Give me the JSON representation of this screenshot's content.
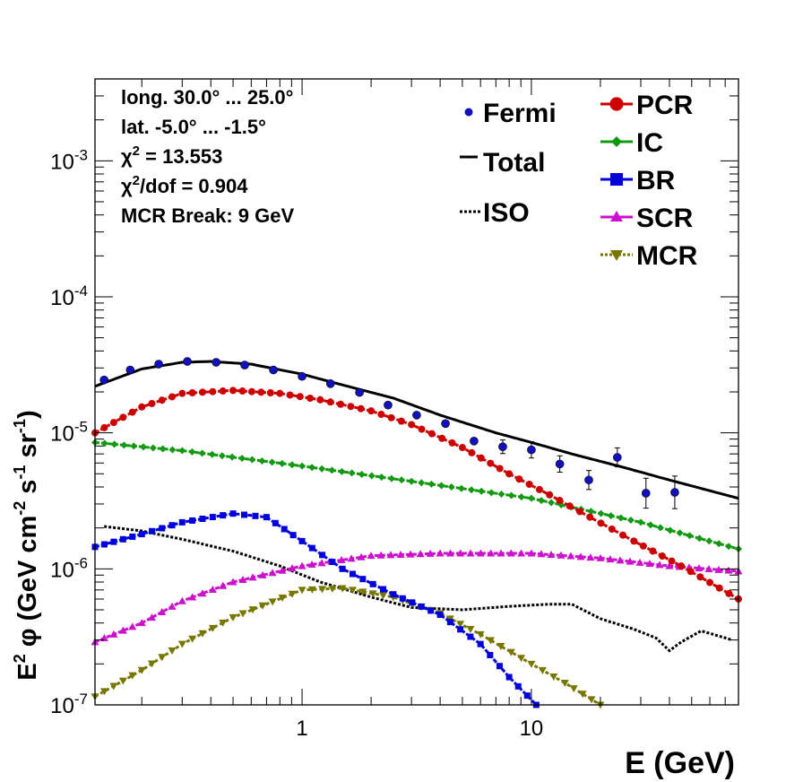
{
  "chart_data": {
    "type": "scatter",
    "xlabel": "E (GeV)",
    "ylabel_parts": [
      "E",
      "2",
      "  φ (GeV cm",
      "-2",
      " s",
      "-1",
      " sr",
      "-1",
      ")"
    ],
    "xscale": "log",
    "yscale": "log",
    "xlim": [
      0.125,
      80
    ],
    "ylim": [
      1e-07,
      0.004
    ],
    "x_ticks": [
      {
        "v": 1,
        "label": "1"
      },
      {
        "v": 10,
        "label": "10"
      }
    ],
    "y_ticks": [
      {
        "v": 1e-07,
        "base": "10",
        "exp": "-7"
      },
      {
        "v": 1e-06,
        "base": "10",
        "exp": "-6"
      },
      {
        "v": 1e-05,
        "base": "10",
        "exp": "-5"
      },
      {
        "v": 0.0001,
        "base": "10",
        "exp": "-4"
      },
      {
        "v": 0.001,
        "base": "10",
        "exp": "-3"
      }
    ],
    "annotations": [
      {
        "text": "long. 30.0° ... 25.0°"
      },
      {
        "text": "lat. -5.0° ... -1.5°"
      },
      {
        "text": "χ",
        "sup": "2",
        "rest": " = 13.553"
      },
      {
        "text": "χ",
        "sup": "2",
        "rest": "/dof = 0.904"
      },
      {
        "text": "MCR Break:  9 GeV"
      }
    ],
    "legend_left": [
      {
        "label": "Fermi",
        "series": "fermi"
      },
      {
        "label": "Total",
        "series": "total"
      },
      {
        "label": "ISO",
        "series": "iso"
      }
    ],
    "legend_right": [
      {
        "label": "PCR",
        "series": "pcr"
      },
      {
        "label": "IC",
        "series": "ic"
      },
      {
        "label": "BR",
        "series": "br"
      },
      {
        "label": "SCR",
        "series": "scr"
      },
      {
        "label": "MCR",
        "series": "mcr"
      }
    ],
    "fermi": {
      "color": "#1010c0",
      "points": [
        {
          "x": 0.137,
          "y": 2.45e-05,
          "err": 0.0
        },
        {
          "x": 0.178,
          "y": 2.9e-05,
          "err": 0.0
        },
        {
          "x": 0.237,
          "y": 3.2e-05,
          "err": 0.0
        },
        {
          "x": 0.316,
          "y": 3.35e-05,
          "err": 0.0
        },
        {
          "x": 0.422,
          "y": 3.3e-05,
          "err": 0.0
        },
        {
          "x": 0.562,
          "y": 3.15e-05,
          "err": 0.0
        },
        {
          "x": 0.75,
          "y": 2.9e-05,
          "err": 0.0
        },
        {
          "x": 1.0,
          "y": 2.6e-05,
          "err": 0.0
        },
        {
          "x": 1.33,
          "y": 2.3e-05,
          "err": 0.0
        },
        {
          "x": 1.78,
          "y": 1.98e-05,
          "err": 0.0
        },
        {
          "x": 2.37,
          "y": 1.6e-05,
          "err": 0.0
        },
        {
          "x": 3.16,
          "y": 1.35e-05,
          "err": 0.0
        },
        {
          "x": 4.22,
          "y": 1.17e-05,
          "err": 0.0
        },
        {
          "x": 5.62,
          "y": 8.7e-06,
          "err": 0.0
        },
        {
          "x": 7.5,
          "y": 7.9e-06,
          "err": 0.05
        },
        {
          "x": 10.0,
          "y": 7.5e-06,
          "err": 0.06
        },
        {
          "x": 13.3,
          "y": 5.9e-06,
          "err": 0.06
        },
        {
          "x": 17.8,
          "y": 4.5e-06,
          "err": 0.07
        },
        {
          "x": 23.7,
          "y": 6.6e-06,
          "err": 0.07
        },
        {
          "x": 31.6,
          "y": 3.6e-06,
          "err": 0.11
        },
        {
          "x": 42.2,
          "y": 3.65e-06,
          "err": 0.12
        }
      ]
    },
    "total": {
      "color": "#000000",
      "points": [
        [
          0.125,
          2.2e-05
        ],
        [
          0.2,
          2.95e-05
        ],
        [
          0.3,
          3.3e-05
        ],
        [
          0.4,
          3.35e-05
        ],
        [
          0.6,
          3.2e-05
        ],
        [
          1.0,
          2.7e-05
        ],
        [
          1.5,
          2.25e-05
        ],
        [
          2.5,
          1.8e-05
        ],
        [
          4,
          1.35e-05
        ],
        [
          7,
          1e-05
        ],
        [
          10,
          8.5e-06
        ],
        [
          15,
          7e-06
        ],
        [
          25,
          5.6e-06
        ],
        [
          40,
          4.5e-06
        ],
        [
          80,
          3.3e-06
        ]
      ]
    },
    "pcr": {
      "color": "#cc0000",
      "points": [
        [
          0.125,
          1e-05
        ],
        [
          0.2,
          1.55e-05
        ],
        [
          0.3,
          1.95e-05
        ],
        [
          0.5,
          2.05e-05
        ],
        [
          0.8,
          1.95e-05
        ],
        [
          1.2,
          1.75e-05
        ],
        [
          2,
          1.45e-05
        ],
        [
          3,
          1.15e-05
        ],
        [
          5,
          7.8e-06
        ],
        [
          8,
          5e-06
        ],
        [
          12,
          3.5e-06
        ],
        [
          18,
          2.4e-06
        ],
        [
          28,
          1.6e-06
        ],
        [
          45,
          1.05e-06
        ],
        [
          80,
          6e-07
        ]
      ]
    },
    "ic": {
      "color": "#119911",
      "points": [
        [
          0.125,
          8.5e-06
        ],
        [
          0.3,
          7.4e-06
        ],
        [
          1,
          5.7e-06
        ],
        [
          3,
          4.4e-06
        ],
        [
          10,
          3.3e-06
        ],
        [
          30,
          2.2e-06
        ],
        [
          80,
          1.4e-06
        ]
      ]
    },
    "br": {
      "color": "#0000dd",
      "points": [
        [
          0.125,
          1.45e-06
        ],
        [
          0.2,
          1.8e-06
        ],
        [
          0.3,
          2.2e-06
        ],
        [
          0.5,
          2.55e-06
        ],
        [
          0.7,
          2.4e-06
        ],
        [
          1.0,
          1.6e-06
        ],
        [
          1.5,
          1e-06
        ],
        [
          2.5,
          6.5e-07
        ],
        [
          4,
          4.6e-07
        ],
        [
          6,
          2.8e-07
        ],
        [
          8,
          1.6e-07
        ],
        [
          10.5,
          1e-07
        ]
      ]
    },
    "scr": {
      "color": "#cc11cc",
      "points": [
        [
          0.125,
          2.9e-07
        ],
        [
          0.2,
          4e-07
        ],
        [
          0.3,
          5.8e-07
        ],
        [
          0.5,
          8e-07
        ],
        [
          1,
          1.05e-06
        ],
        [
          2,
          1.25e-06
        ],
        [
          4,
          1.3e-06
        ],
        [
          10,
          1.3e-06
        ],
        [
          20,
          1.2e-06
        ],
        [
          40,
          1.05e-06
        ],
        [
          80,
          9.6e-07
        ]
      ]
    },
    "mcr": {
      "color": "#777700",
      "points": [
        [
          0.125,
          1.15e-07
        ],
        [
          0.2,
          1.8e-07
        ],
        [
          0.3,
          2.8e-07
        ],
        [
          0.5,
          4.4e-07
        ],
        [
          1,
          7e-07
        ],
        [
          1.5,
          7.2e-07
        ],
        [
          2.5,
          6.2e-07
        ],
        [
          4,
          4.7e-07
        ],
        [
          6,
          3.3e-07
        ],
        [
          10,
          2e-07
        ],
        [
          14,
          1.45e-07
        ],
        [
          20,
          1e-07
        ]
      ]
    },
    "iso": {
      "color": "#000000",
      "points": [
        [
          0.137,
          2.05e-06
        ],
        [
          0.2,
          1.9e-06
        ],
        [
          0.3,
          1.65e-06
        ],
        [
          0.5,
          1.35e-06
        ],
        [
          0.8,
          1.05e-06
        ],
        [
          1.2,
          8e-07
        ],
        [
          2,
          6.2e-07
        ],
        [
          3,
          5.2e-07
        ],
        [
          5,
          5e-07
        ],
        [
          8,
          5.3e-07
        ],
        [
          12,
          5.5e-07
        ],
        [
          15,
          5.5e-07
        ],
        [
          20,
          4.3e-07
        ],
        [
          28,
          3.6e-07
        ],
        [
          35,
          3.1e-07
        ],
        [
          40,
          2.5e-07
        ],
        [
          45,
          2.9e-07
        ],
        [
          55,
          3.5e-07
        ],
        [
          66,
          3.2e-07
        ],
        [
          75,
          3e-07
        ]
      ]
    }
  }
}
